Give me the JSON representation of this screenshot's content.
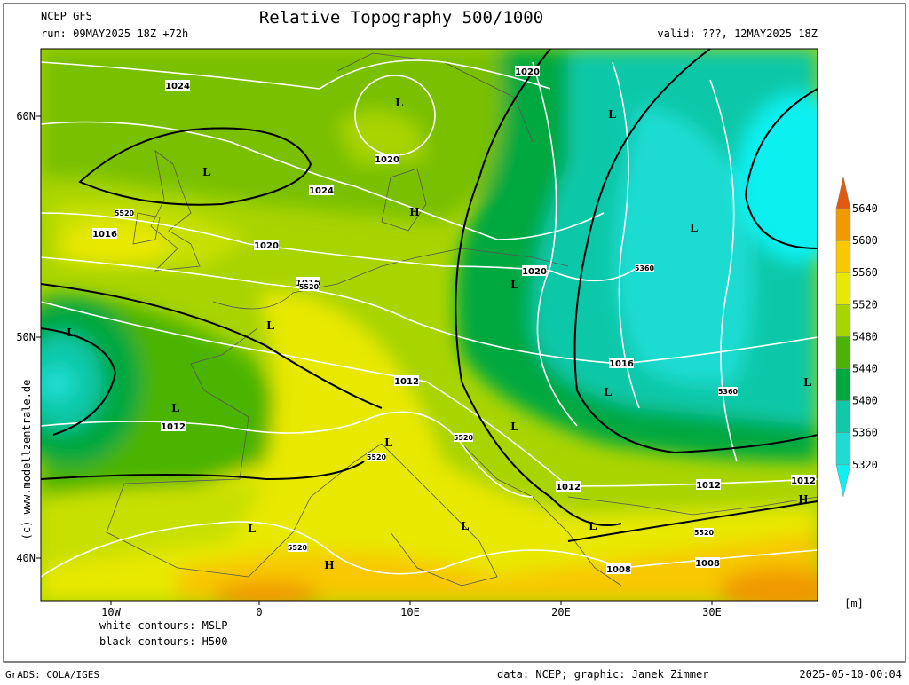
{
  "header": {
    "model": "NCEP GFS",
    "title": "Relative Topography 500/1000",
    "run": "run: 09MAY2025 18Z +72h",
    "valid": "valid: ???, 12MAY2025 18Z"
  },
  "map": {
    "x_labels": [
      "10W",
      "0",
      "10E",
      "20E",
      "30E"
    ],
    "y_labels": [
      "60N",
      "50N",
      "40N"
    ],
    "side_credit": "(c) www.modellzentrale.de",
    "labels": [
      "1024",
      "1020",
      "L",
      "L",
      "1020",
      "L",
      "1024",
      "H",
      "5520",
      "1016",
      "L",
      "1020",
      "5360",
      "1020",
      "L",
      "1016",
      "5520",
      "L",
      "L",
      "1016",
      "L",
      "1012",
      "L",
      "5360",
      "L",
      "1012",
      "L",
      "L",
      "5520",
      "5520",
      "1012",
      "1012",
      "1012",
      "H",
      "L",
      "L",
      "L",
      "5520",
      "5520",
      "H",
      "1008",
      "1008"
    ]
  },
  "legend": {
    "levels": [
      5320,
      5360,
      5400,
      5440,
      5480,
      5520,
      5560,
      5600,
      5640
    ],
    "colors": [
      "#10f0f0",
      "#1edcd2",
      "#10c8a8",
      "#00a840",
      "#4cb400",
      "#a8d400",
      "#e8e800",
      "#f8c800",
      "#f09a00",
      "#e05a10"
    ],
    "unit": "[m]"
  },
  "notes": [
    "white contours: MSLP",
    "black contours: H500"
  ],
  "footer": {
    "left": "GrADS: COLA/IGES",
    "center": "data: NCEP; graphic: Janek Zimmer",
    "right": "2025-05-10-00:04"
  }
}
